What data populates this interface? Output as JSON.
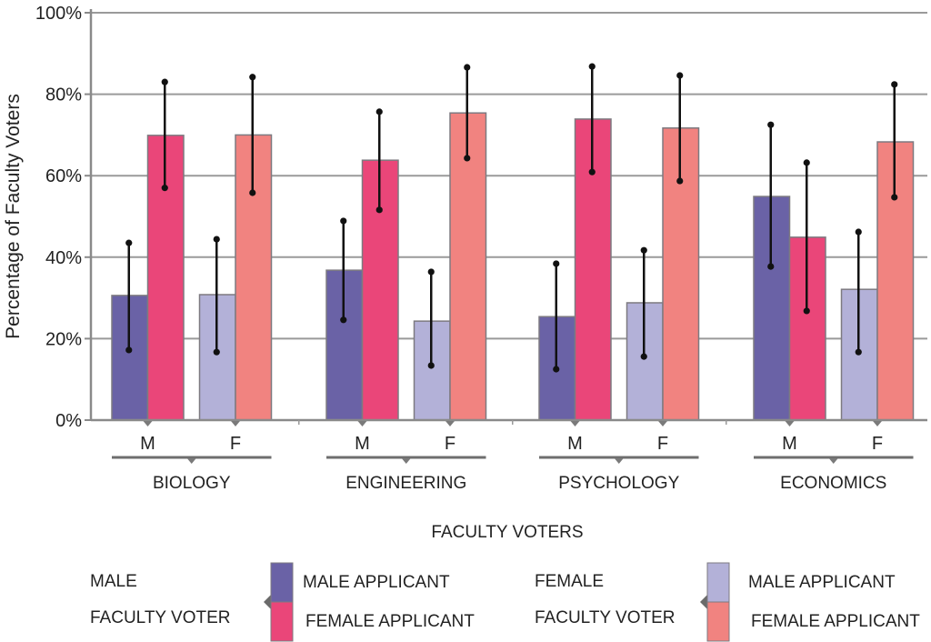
{
  "chart_data": {
    "type": "bar",
    "title": "",
    "xlabel": "FACULTY VOTERS",
    "ylabel": "Percentage of Faculty Voters",
    "ylim": [
      0,
      100
    ],
    "yticks": [
      0,
      20,
      40,
      60,
      80,
      100
    ],
    "ytick_labels": [
      "0%",
      "20%",
      "40%",
      "60%",
      "80%",
      "100%"
    ],
    "grid": true,
    "legend_position": "bottom",
    "disciplines": [
      "BIOLOGY",
      "ENGINEERING",
      "PSYCHOLOGY",
      "ECONOMICS"
    ],
    "voter_groups": [
      "M",
      "F"
    ],
    "series": [
      {
        "name": "Male faculty voter / Male applicant",
        "voter": "M",
        "applicant": "male",
        "color": "#6a62a6",
        "values": [
          30.6,
          36.8,
          25.4,
          54.9
        ],
        "error_high": [
          43.5,
          48.9,
          38.4,
          72.5
        ],
        "error_low": [
          17.2,
          24.6,
          12.5,
          37.7
        ]
      },
      {
        "name": "Male faculty voter / Female applicant",
        "voter": "M",
        "applicant": "female",
        "color": "#ea4679",
        "values": [
          69.9,
          63.8,
          73.9,
          44.9
        ],
        "error_high": [
          83.0,
          75.7,
          86.8,
          63.2
        ],
        "error_low": [
          57.0,
          51.6,
          60.9,
          26.8
        ]
      },
      {
        "name": "Female faculty voter / Male applicant",
        "voter": "F",
        "applicant": "male",
        "color": "#b3b1d8",
        "values": [
          30.8,
          24.3,
          28.8,
          32.1
        ],
        "error_high": [
          44.4,
          36.4,
          41.7,
          46.2
        ],
        "error_low": [
          16.7,
          13.4,
          15.6,
          16.7
        ]
      },
      {
        "name": "Female faculty voter / Female applicant",
        "voter": "F",
        "applicant": "female",
        "color": "#f18380",
        "values": [
          70.0,
          75.4,
          71.7,
          68.3
        ],
        "error_high": [
          84.2,
          86.6,
          84.6,
          82.4
        ],
        "error_low": [
          55.8,
          64.3,
          58.7,
          54.7
        ]
      }
    ],
    "legend": [
      {
        "group_line1": "MALE",
        "group_line2": "FACULTY VOTER",
        "entries": [
          {
            "label": "MALE APPLICANT",
            "color": "#6a62a6"
          },
          {
            "label": "FEMALE APPLICANT",
            "color": "#ea4679"
          }
        ]
      },
      {
        "group_line1": "FEMALE",
        "group_line2": "FACULTY VOTER",
        "entries": [
          {
            "label": "MALE APPLICANT",
            "color": "#b3b1d8"
          },
          {
            "label": "FEMALE APPLICANT",
            "color": "#f18380"
          }
        ]
      }
    ]
  }
}
